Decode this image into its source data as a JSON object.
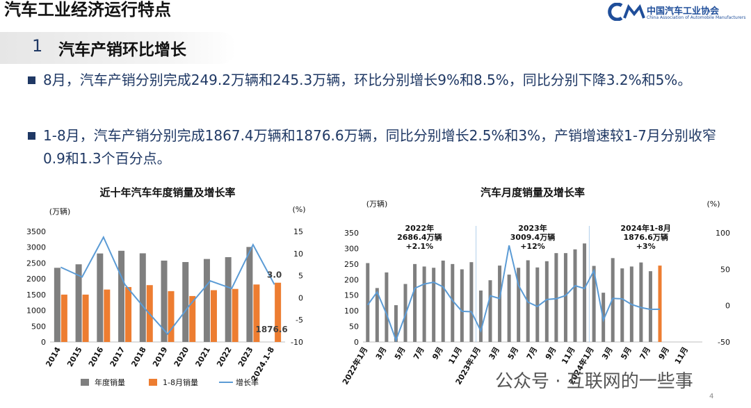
{
  "header": {
    "title": "汽车工业经济运行特点",
    "logo_name": "中国汽车工业协会",
    "logo_english": "China Association of Automobile Manufacturers"
  },
  "section": {
    "number": "1",
    "title": "汽车产销环比增长"
  },
  "bullets": [
    "8月，汽车产销分别完成249.2万辆和245.3万辆，环比分别增长9%和8.5%，同比分别下降3.2%和5%。",
    "1-8月，汽车产销分别完成1867.4万辆和1876.6万辆，同比分别增长2.5%和3%，产销增速较1-7月分别收窄0.9和1.3个百分点。"
  ],
  "page_number": "4",
  "watermark": "公众号 · 互联网的一些事",
  "chart_data": [
    {
      "type": "bar",
      "title": "近十年汽车年度销量及增长率",
      "y_label": "(万辆)",
      "y2_label": "(%)",
      "barmode": "group",
      "legend": "bottom",
      "categories": [
        "2014",
        "2015",
        "2016",
        "2017",
        "2018",
        "2019",
        "2020",
        "2021",
        "2022",
        "2023",
        "2024.1-8"
      ],
      "series": [
        {
          "name": "年度销量",
          "color": "#7f7f7f",
          "values": [
            2349,
            2460,
            2803,
            2888,
            2808,
            2577,
            2531,
            2628,
            2686,
            3009,
            null
          ]
        },
        {
          "name": "1-8月销量",
          "color": "#ed7d31",
          "values": [
            1500,
            1500,
            1660,
            1740,
            1800,
            1610,
            1455,
            1640,
            1680,
            1820,
            1876.6
          ],
          "value_labels": [
            null,
            null,
            null,
            null,
            null,
            null,
            null,
            null,
            null,
            null,
            "1876.6"
          ]
        },
        {
          "name": "增长率",
          "color": "#5b9bd5",
          "type": "line",
          "axis": "y2",
          "values": [
            6.9,
            4.7,
            13.7,
            3,
            -2.8,
            -8.2,
            -1.9,
            3.8,
            2.1,
            12,
            3
          ],
          "value_labels": [
            null,
            null,
            null,
            null,
            null,
            null,
            null,
            null,
            null,
            null,
            "3.0"
          ]
        }
      ],
      "ylim": [
        0,
        3500
      ],
      "yticks": [
        0,
        500,
        1000,
        1500,
        2000,
        2500,
        3000,
        3500
      ],
      "y2lim": [
        -10,
        15
      ],
      "y2ticks": [
        -10,
        -5,
        0,
        5,
        10,
        15
      ]
    },
    {
      "type": "bar",
      "title": "汽车月度销量及增长率",
      "y_label": "(万辆)",
      "y2_label": "(%)",
      "barmode": "overlay",
      "categories": [
        "2022年1月",
        null,
        "3月",
        null,
        "5月",
        null,
        "7月",
        null,
        "9月",
        null,
        "11月",
        null,
        "2023年1月",
        null,
        "3月",
        null,
        "5月",
        null,
        "7月",
        null,
        "9月",
        null,
        "11月",
        null,
        "2024年1月",
        null,
        "3月",
        null,
        "5月",
        null,
        "7月",
        null,
        "9月",
        null,
        "11月",
        null
      ],
      "series": [
        {
          "color": "#7f7f7f",
          "values": [
            253,
            173,
            223,
            118,
            186,
            250,
            242,
            238,
            261,
            250,
            233,
            256,
            165,
            198,
            245,
            216,
            238,
            262,
            239,
            259,
            285,
            285,
            297,
            316,
            244,
            158,
            269,
            236,
            242,
            255,
            227,
            null,
            null,
            null,
            null,
            null
          ]
        },
        {
          "color": "#ed7d31",
          "values": [
            null,
            null,
            null,
            null,
            null,
            null,
            null,
            null,
            null,
            null,
            null,
            null,
            null,
            null,
            null,
            null,
            null,
            null,
            null,
            null,
            null,
            null,
            null,
            null,
            null,
            null,
            null,
            null,
            null,
            null,
            null,
            245,
            null,
            null,
            null,
            null
          ]
        },
        {
          "color": "#5b9bd5",
          "type": "line",
          "axis": "y2",
          "values": [
            0.9,
            18.7,
            -11.7,
            -47.6,
            -12.6,
            23.8,
            29.7,
            32.1,
            25.7,
            6.9,
            -7.9,
            -8.4,
            -34.8,
            13.5,
            9.7,
            82.7,
            27.9,
            4.8,
            -1.2,
            8.4,
            9.5,
            13.8,
            27.4,
            23.5,
            47.9,
            -19.9,
            9.9,
            9.3,
            1.5,
            -2.7,
            -5.2,
            -5,
            null,
            null,
            null,
            null
          ]
        }
      ],
      "annotations": [
        [
          "2022年",
          "2686.4万辆",
          "+2.1%"
        ],
        [
          "2023年",
          "3009.4万辆",
          "+12%"
        ],
        [
          "2024年1-8月",
          "1876.6万辆",
          "+3%"
        ]
      ],
      "ylim": [
        0,
        350
      ],
      "yticks": [
        0,
        50,
        100,
        150,
        200,
        250,
        300,
        350
      ],
      "y2lim": [
        -50,
        100
      ],
      "y2ticks": [
        -50,
        0,
        50,
        100
      ]
    }
  ]
}
